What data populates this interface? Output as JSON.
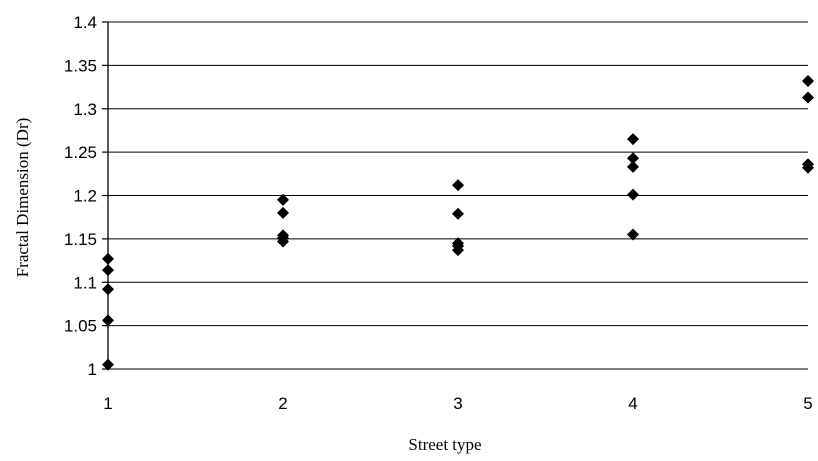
{
  "chart_data": {
    "type": "scatter",
    "title": "",
    "xlabel": "Street type",
    "ylabel": "Fractal Dimension (Dr)",
    "x_ticks": [
      "1",
      "2",
      "3",
      "4",
      "5"
    ],
    "y_ticks": [
      "1",
      "1.05",
      "1.1",
      "1.15",
      "1.2",
      "1.25",
      "1.3",
      "1.35",
      "1.4"
    ],
    "xlim": [
      1,
      5
    ],
    "ylim": [
      1,
      1.4
    ],
    "grid": "horizontal",
    "legend": "none",
    "marker": "diamond",
    "marker_color": "#000000",
    "series": [
      {
        "points": [
          {
            "x": 1,
            "y": 1.127
          },
          {
            "x": 1,
            "y": 1.114
          },
          {
            "x": 1,
            "y": 1.092
          },
          {
            "x": 1,
            "y": 1.056
          },
          {
            "x": 1,
            "y": 1.005
          },
          {
            "x": 2,
            "y": 1.195
          },
          {
            "x": 2,
            "y": 1.18
          },
          {
            "x": 2,
            "y": 1.154
          },
          {
            "x": 2,
            "y": 1.151
          },
          {
            "x": 2,
            "y": 1.147
          },
          {
            "x": 3,
            "y": 1.212
          },
          {
            "x": 3,
            "y": 1.179
          },
          {
            "x": 3,
            "y": 1.145
          },
          {
            "x": 3,
            "y": 1.142
          },
          {
            "x": 3,
            "y": 1.137
          },
          {
            "x": 4,
            "y": 1.265
          },
          {
            "x": 4,
            "y": 1.243
          },
          {
            "x": 4,
            "y": 1.233
          },
          {
            "x": 4,
            "y": 1.201
          },
          {
            "x": 4,
            "y": 1.155
          },
          {
            "x": 5,
            "y": 1.332
          },
          {
            "x": 5,
            "y": 1.313
          },
          {
            "x": 5,
            "y": 1.236
          },
          {
            "x": 5,
            "y": 1.232
          }
        ]
      }
    ]
  }
}
